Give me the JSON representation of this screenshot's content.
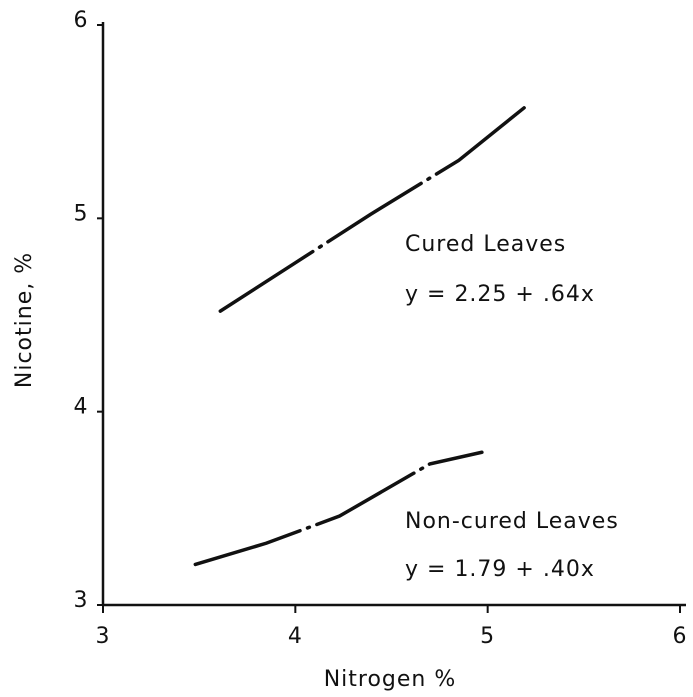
{
  "chart_data": {
    "type": "line",
    "xlabel": "Nitrogen %",
    "ylabel": "Nicotine, %",
    "xlim": [
      3,
      6
    ],
    "xticks": [
      3,
      4,
      5,
      6
    ],
    "ylim": [
      3,
      6
    ],
    "yticks": [
      3,
      4,
      5,
      6
    ],
    "grid": false,
    "series": [
      {
        "name": "Cured Leaves",
        "equation": "y = 2.25 + .64x",
        "color": "#111111",
        "x": [
          3.61,
          4.0,
          4.39,
          4.85,
          5.2
        ],
        "values": [
          4.52,
          4.77,
          5.02,
          5.3,
          5.58
        ]
      },
      {
        "name": "Non-cured Leaves",
        "equation": "y = 1.79 + .40x",
        "color": "#111111",
        "x": [
          3.48,
          3.85,
          4.23,
          4.7,
          4.97
        ],
        "values": [
          3.21,
          3.32,
          3.46,
          3.73,
          3.79
        ]
      }
    ]
  }
}
